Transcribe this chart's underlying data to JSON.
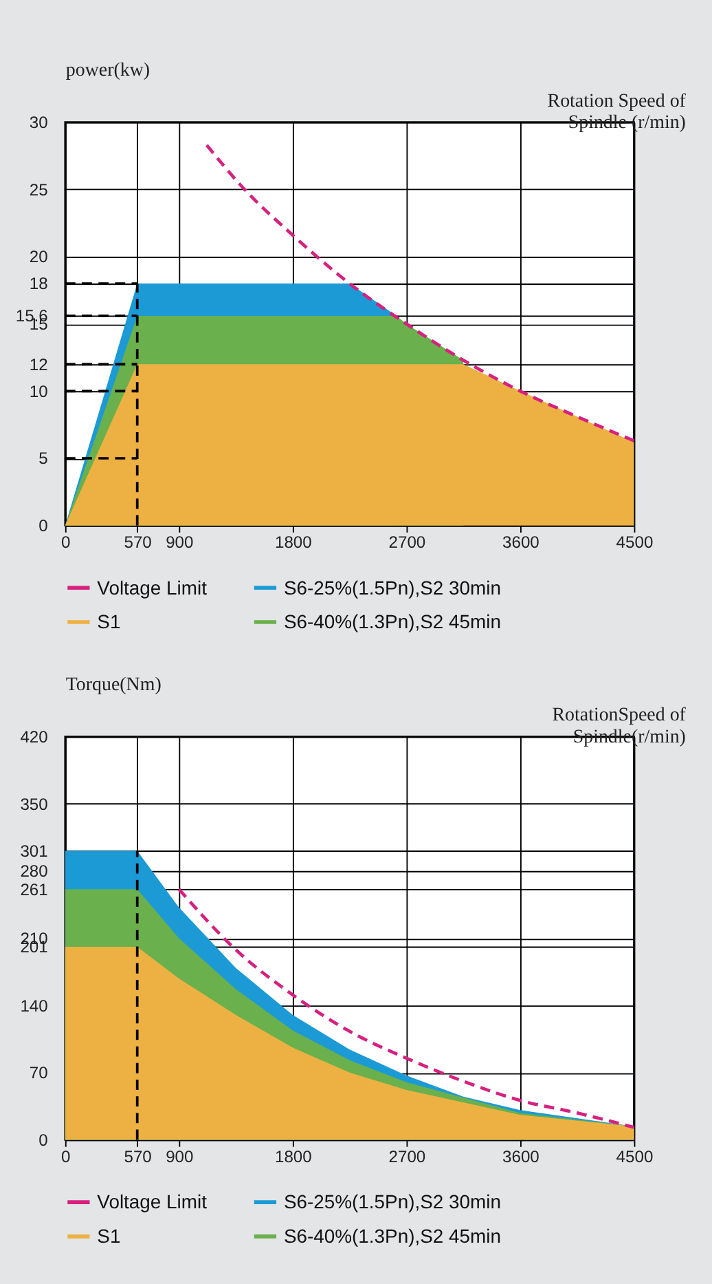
{
  "chart_data": [
    {
      "type": "area",
      "ylabel": "power(kw)",
      "xlabel": "Rotation Speed of Spindle (r/min)",
      "xlim": [
        0,
        4500
      ],
      "xticks": [
        0,
        570,
        900,
        1800,
        2700,
        3600,
        4500
      ],
      "ylim": [
        0,
        30
      ],
      "yticks": [
        0,
        5,
        10,
        12,
        15,
        15.6,
        18,
        20,
        25,
        30
      ],
      "grid": true,
      "legend": "bottom",
      "series": [
        {
          "name": "Voltage Limit",
          "type": "line",
          "line_style": "dashed",
          "color": "#d6217f",
          "x": [
            1120,
            1400,
            1800,
            2250,
            2700,
            3150,
            3600,
            4050,
            4500
          ],
          "values": [
            28.3,
            25.2,
            21.6,
            18.0,
            15.0,
            12.3,
            10.0,
            8.1,
            6.3
          ]
        },
        {
          "name": "S6-25%(1.5Pn),S2 30min",
          "color": "#1b9ad6",
          "x": [
            0,
            570,
            2250,
            2620
          ],
          "values": [
            0,
            18,
            18,
            15.6
          ]
        },
        {
          "name": "S1",
          "color": "#edb143",
          "x": [
            0,
            570,
            3150,
            3600,
            4050,
            4500
          ],
          "values": [
            0,
            12,
            12,
            10.0,
            8.1,
            6.2
          ]
        },
        {
          "name": "S6-40%(1.3Pn),S2 45min",
          "color": "#6ab04c",
          "x": [
            0,
            570,
            2620,
            2700,
            3150
          ],
          "values": [
            0,
            15.6,
            15.6,
            15.0,
            12.3
          ]
        }
      ],
      "ref_lines": [
        {
          "axis": "x",
          "value": 570,
          "line_style": "dashed",
          "color": "#000000"
        },
        {
          "axis": "y",
          "value": 5,
          "line_style": "dashed",
          "color": "#000000"
        },
        {
          "axis": "y",
          "value": 10,
          "line_style": "dashed",
          "color": "#000000"
        },
        {
          "axis": "y",
          "value": 12,
          "line_style": "dashed",
          "color": "#000000"
        },
        {
          "axis": "y",
          "value": 15.6,
          "line_style": "dashed",
          "color": "#000000"
        },
        {
          "axis": "y",
          "value": 18,
          "line_style": "dashed",
          "color": "#000000"
        }
      ]
    },
    {
      "type": "area",
      "ylabel": "Torque(Nm)",
      "xlabel": "RotationSpeed of Spindle(r/min)",
      "xlim": [
        0,
        4500
      ],
      "xticks": [
        0,
        570,
        900,
        1800,
        2700,
        3600,
        4500
      ],
      "ylim": [
        0,
        420
      ],
      "yticks": [
        0,
        70,
        140,
        201,
        210,
        261,
        280,
        301,
        350,
        420
      ],
      "grid": true,
      "legend": "bottom",
      "series": [
        {
          "name": "Voltage Limit",
          "type": "line",
          "line_style": "dashed",
          "color": "#d6217f",
          "x": [
            900,
            1350,
            1800,
            2250,
            2700,
            3150,
            3600,
            4050,
            4500
          ],
          "values": [
            261,
            198,
            151,
            113,
            85,
            61,
            41,
            28,
            13
          ]
        },
        {
          "name": "S6-25%(1.5Pn),S2 30min",
          "color": "#1b9ad6",
          "x": [
            0,
            570,
            900,
            1350,
            1800,
            2250,
            2700,
            3150,
            3600,
            4500
          ],
          "values": [
            301,
            301,
            242,
            179,
            130,
            94,
            67,
            45,
            31,
            14
          ]
        },
        {
          "name": "S1",
          "color": "#edb143",
          "x": [
            0,
            570,
            900,
            1350,
            1800,
            2250,
            2700,
            3600,
            4500
          ],
          "values": [
            201,
            201,
            168,
            130,
            96,
            70,
            52,
            26,
            14
          ]
        },
        {
          "name": "S6-40%(1.3Pn),S2 45min",
          "color": "#6ab04c",
          "x": [
            0,
            570,
            900,
            1350,
            1800,
            2250,
            2700,
            3600,
            4500
          ],
          "values": [
            261,
            261,
            210,
            157,
            114,
            83,
            60,
            28,
            14
          ]
        }
      ],
      "ref_lines": [
        {
          "axis": "x",
          "value": 570,
          "line_style": "dashed",
          "color": "#000000"
        }
      ]
    }
  ]
}
